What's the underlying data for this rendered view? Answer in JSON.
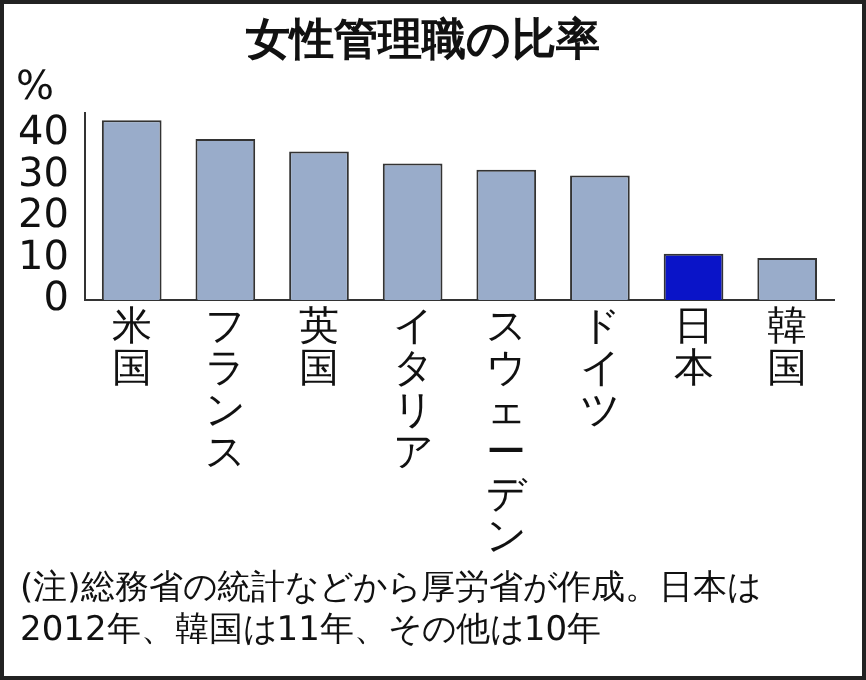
{
  "chart_data": {
    "type": "bar",
    "title": "女性管理職の比率",
    "ylabel": "%",
    "categories": [
      "米国",
      "フランス",
      "英国",
      "イタリア",
      "スウェーデン",
      "ドイツ",
      "日本",
      "韓国"
    ],
    "values": [
      43.2,
      38.7,
      35.7,
      32.8,
      31.3,
      29.9,
      11.1,
      10.1
    ],
    "colors": [
      "#99acca",
      "#99acca",
      "#99acca",
      "#99acca",
      "#99acca",
      "#99acca",
      "#0a14c8",
      "#99acca"
    ],
    "ylim": [
      0,
      45
    ],
    "yticks": [
      0,
      10,
      20,
      30,
      40
    ],
    "grid": false,
    "legend": false,
    "annotations": [
      "(注)総務省の統計などから厚労省が作成。日本は2012年、韓国は11年、その他は10年"
    ]
  }
}
